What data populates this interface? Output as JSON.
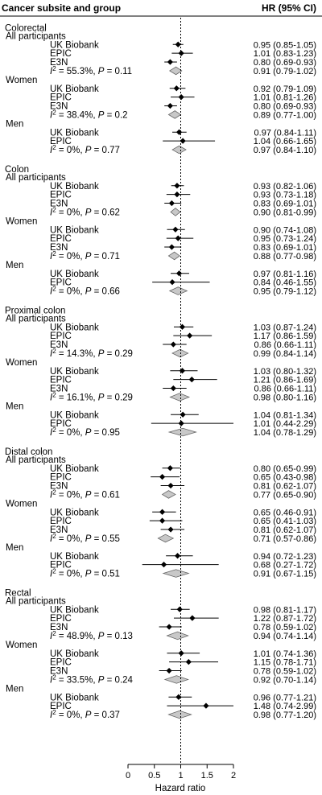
{
  "chart_data": {
    "type": "forest",
    "header_left": "Cancer subsite and group",
    "header_right": "HR (95% CI)",
    "xlabel": "Hazard ratio",
    "xlim": [
      0,
      2
    ],
    "xticks": [
      "0",
      "0.5",
      "1",
      "1.5",
      "2"
    ],
    "reference_line": 1,
    "rows": [
      {
        "kind": "site",
        "label": "Colorectal"
      },
      {
        "kind": "group",
        "label": "All participants"
      },
      {
        "kind": "study",
        "label": "UK Biobank",
        "hr": 0.95,
        "lo": 0.85,
        "hi": 1.05,
        "text": "0.95 (0.85-1.05)"
      },
      {
        "kind": "study",
        "label": "EPIC",
        "hr": 1.01,
        "lo": 0.83,
        "hi": 1.23,
        "text": "1.01 (0.83-1.23)"
      },
      {
        "kind": "study",
        "label": "E3N",
        "hr": 0.8,
        "lo": 0.69,
        "hi": 0.93,
        "text": "0.80 (0.69-0.93)"
      },
      {
        "kind": "pooled",
        "i2": "55.3%",
        "p": "0.11",
        "hr": 0.91,
        "lo": 0.79,
        "hi": 1.02,
        "text": "0.91 (0.79-1.02)"
      },
      {
        "kind": "group",
        "label": "Women"
      },
      {
        "kind": "study",
        "label": "UK Biobank",
        "hr": 0.92,
        "lo": 0.79,
        "hi": 1.09,
        "text": "0.92 (0.79-1.09)"
      },
      {
        "kind": "study",
        "label": "EPIC",
        "hr": 1.01,
        "lo": 0.81,
        "hi": 1.26,
        "text": "1.01 (0.81-1.26)"
      },
      {
        "kind": "study",
        "label": "E3N",
        "hr": 0.8,
        "lo": 0.69,
        "hi": 0.93,
        "text": "0.80 (0.69-0.93)"
      },
      {
        "kind": "pooled",
        "i2": "38.4%",
        "p": "0.2",
        "hr": 0.89,
        "lo": 0.77,
        "hi": 1.0,
        "text": "0.89 (0.77-1.00)"
      },
      {
        "kind": "group",
        "label": "Men"
      },
      {
        "kind": "study",
        "label": "UK Biobank",
        "hr": 0.97,
        "lo": 0.84,
        "hi": 1.11,
        "text": "0.97 (0.84-1.11)"
      },
      {
        "kind": "study",
        "label": "EPIC",
        "hr": 1.04,
        "lo": 0.66,
        "hi": 1.65,
        "text": "1.04 (0.66-1.65)"
      },
      {
        "kind": "pooled",
        "i2": "0%",
        "p": "0.77",
        "hr": 0.97,
        "lo": 0.84,
        "hi": 1.1,
        "text": "0.97 (0.84-1.10)"
      },
      {
        "kind": "gap"
      },
      {
        "kind": "site",
        "label": "Colon"
      },
      {
        "kind": "group",
        "label": "All participants"
      },
      {
        "kind": "study",
        "label": "UK Biobank",
        "hr": 0.93,
        "lo": 0.82,
        "hi": 1.06,
        "text": "0.93 (0.82-1.06)"
      },
      {
        "kind": "study",
        "label": "EPIC",
        "hr": 0.93,
        "lo": 0.73,
        "hi": 1.18,
        "text": "0.93 (0.73-1.18)"
      },
      {
        "kind": "study",
        "label": "E3N",
        "hr": 0.83,
        "lo": 0.69,
        "hi": 1.01,
        "text": "0.83 (0.69-1.01)"
      },
      {
        "kind": "pooled",
        "i2": "0%",
        "p": "0.62",
        "hr": 0.9,
        "lo": 0.81,
        "hi": 0.99,
        "text": "0.90 (0.81-0.99)"
      },
      {
        "kind": "group",
        "label": "Women"
      },
      {
        "kind": "study",
        "label": "UK Biobank",
        "hr": 0.9,
        "lo": 0.74,
        "hi": 1.08,
        "text": "0.90 (0.74-1.08)"
      },
      {
        "kind": "study",
        "label": "EPIC",
        "hr": 0.95,
        "lo": 0.73,
        "hi": 1.24,
        "text": "0.95 (0.73-1.24)"
      },
      {
        "kind": "study",
        "label": "E3N",
        "hr": 0.83,
        "lo": 0.69,
        "hi": 1.01,
        "text": "0.83 (0.69-1.01)"
      },
      {
        "kind": "pooled",
        "i2": "0%",
        "p": "0.71",
        "hr": 0.88,
        "lo": 0.77,
        "hi": 0.98,
        "text": "0.88 (0.77-0.98)"
      },
      {
        "kind": "group",
        "label": "Men"
      },
      {
        "kind": "study",
        "label": "UK Biobank",
        "hr": 0.97,
        "lo": 0.81,
        "hi": 1.16,
        "text": "0.97 (0.81-1.16)"
      },
      {
        "kind": "study",
        "label": "EPIC",
        "hr": 0.84,
        "lo": 0.46,
        "hi": 1.55,
        "text": "0.84 (0.46-1.55)"
      },
      {
        "kind": "pooled",
        "i2": "0%",
        "p": "0.66",
        "hr": 0.95,
        "lo": 0.79,
        "hi": 1.12,
        "text": "0.95 (0.79-1.12)"
      },
      {
        "kind": "gap"
      },
      {
        "kind": "site",
        "label": "Proximal colon"
      },
      {
        "kind": "group",
        "label": "All participants"
      },
      {
        "kind": "study",
        "label": "UK Biobank",
        "hr": 1.03,
        "lo": 0.87,
        "hi": 1.24,
        "text": "1.03 (0.87-1.24)"
      },
      {
        "kind": "study",
        "label": "EPIC",
        "hr": 1.17,
        "lo": 0.86,
        "hi": 1.59,
        "text": "1.17 (0.86-1.59)"
      },
      {
        "kind": "study",
        "label": "E3N",
        "hr": 0.86,
        "lo": 0.66,
        "hi": 1.11,
        "text": "0.86 (0.66-1.11)"
      },
      {
        "kind": "pooled",
        "i2": "14.3%",
        "p": "0.29",
        "hr": 0.99,
        "lo": 0.84,
        "hi": 1.14,
        "text": "0.99 (0.84-1.14)"
      },
      {
        "kind": "group",
        "label": "Women"
      },
      {
        "kind": "study",
        "label": "UK Biobank",
        "hr": 1.03,
        "lo": 0.8,
        "hi": 1.32,
        "text": "1.03 (0.80-1.32)"
      },
      {
        "kind": "study",
        "label": "EPIC",
        "hr": 1.21,
        "lo": 0.86,
        "hi": 1.69,
        "text": "1.21 (0.86-1.69)"
      },
      {
        "kind": "study",
        "label": "E3N",
        "hr": 0.86,
        "lo": 0.66,
        "hi": 1.11,
        "text": "0.86 (0.66-1.11)"
      },
      {
        "kind": "pooled",
        "i2": "16.1%",
        "p": "0.29",
        "hr": 0.98,
        "lo": 0.8,
        "hi": 1.16,
        "text": "0.98 (0.80-1.16)"
      },
      {
        "kind": "group",
        "label": "Men"
      },
      {
        "kind": "study",
        "label": "UK Biobank",
        "hr": 1.04,
        "lo": 0.81,
        "hi": 1.34,
        "text": "1.04 (0.81-1.34)"
      },
      {
        "kind": "study",
        "label": "EPIC",
        "hr": 1.01,
        "lo": 0.44,
        "hi": 2.29,
        "text": "1.01 (0.44-2.29)"
      },
      {
        "kind": "pooled",
        "i2": "0%",
        "p": "0.95",
        "hr": 1.04,
        "lo": 0.78,
        "hi": 1.29,
        "text": "1.04 (0.78-1.29)"
      },
      {
        "kind": "gap"
      },
      {
        "kind": "site",
        "label": "Distal colon"
      },
      {
        "kind": "group",
        "label": "All participants"
      },
      {
        "kind": "study",
        "label": "UK Biobank",
        "hr": 0.8,
        "lo": 0.65,
        "hi": 0.99,
        "text": "0.80 (0.65-0.99)"
      },
      {
        "kind": "study",
        "label": "EPIC",
        "hr": 0.65,
        "lo": 0.43,
        "hi": 0.98,
        "text": "0.65 (0.43-0.98)"
      },
      {
        "kind": "study",
        "label": "E3N",
        "hr": 0.81,
        "lo": 0.62,
        "hi": 1.07,
        "text": "0.81 (0.62-1.07)"
      },
      {
        "kind": "pooled",
        "i2": "0%",
        "p": "0.61",
        "hr": 0.77,
        "lo": 0.65,
        "hi": 0.9,
        "text": "0.77 (0.65-0.90)"
      },
      {
        "kind": "group",
        "label": "Women"
      },
      {
        "kind": "study",
        "label": "UK Biobank",
        "hr": 0.65,
        "lo": 0.46,
        "hi": 0.91,
        "text": "0.65 (0.46-0.91)"
      },
      {
        "kind": "study",
        "label": "EPIC",
        "hr": 0.65,
        "lo": 0.41,
        "hi": 1.03,
        "text": "0.65 (0.41-1.03)"
      },
      {
        "kind": "study",
        "label": "E3N",
        "hr": 0.81,
        "lo": 0.62,
        "hi": 1.07,
        "text": "0.81 (0.62-1.07)"
      },
      {
        "kind": "pooled",
        "i2": "0%",
        "p": "0.55",
        "hr": 0.71,
        "lo": 0.57,
        "hi": 0.86,
        "text": "0.71 (0.57-0.86)"
      },
      {
        "kind": "group",
        "label": "Men"
      },
      {
        "kind": "study",
        "label": "UK Biobank",
        "hr": 0.94,
        "lo": 0.72,
        "hi": 1.23,
        "text": "0.94 (0.72-1.23)"
      },
      {
        "kind": "study",
        "label": "EPIC",
        "hr": 0.68,
        "lo": 0.27,
        "hi": 1.72,
        "text": "0.68 (0.27-1.72)"
      },
      {
        "kind": "pooled",
        "i2": "0%",
        "p": "0.51",
        "hr": 0.91,
        "lo": 0.67,
        "hi": 1.15,
        "text": "0.91 (0.67-1.15)"
      },
      {
        "kind": "gap"
      },
      {
        "kind": "site",
        "label": "Rectal"
      },
      {
        "kind": "group",
        "label": "All participants"
      },
      {
        "kind": "study",
        "label": "UK Biobank",
        "hr": 0.98,
        "lo": 0.81,
        "hi": 1.17,
        "text": "0.98 (0.81-1.17)"
      },
      {
        "kind": "study",
        "label": "EPIC",
        "hr": 1.22,
        "lo": 0.87,
        "hi": 1.72,
        "text": "1.22 (0.87-1.72)"
      },
      {
        "kind": "study",
        "label": "E3N",
        "hr": 0.78,
        "lo": 0.59,
        "hi": 1.02,
        "text": "0.78 (0.59-1.02)"
      },
      {
        "kind": "pooled",
        "i2": "48.9%",
        "p": "0.13",
        "hr": 0.94,
        "lo": 0.74,
        "hi": 1.14,
        "text": "0.94 (0.74-1.14)"
      },
      {
        "kind": "group",
        "label": "Women"
      },
      {
        "kind": "study",
        "label": "UK Biobank",
        "hr": 1.01,
        "lo": 0.74,
        "hi": 1.36,
        "text": "1.01 (0.74-1.36)"
      },
      {
        "kind": "study",
        "label": "EPIC",
        "hr": 1.15,
        "lo": 0.78,
        "hi": 1.71,
        "text": "1.15 (0.78-1.71)"
      },
      {
        "kind": "study",
        "label": "E3N",
        "hr": 0.78,
        "lo": 0.59,
        "hi": 1.02,
        "text": "0.78 (0.59-1.02)"
      },
      {
        "kind": "pooled",
        "i2": "33.5%",
        "p": "0.24",
        "hr": 0.92,
        "lo": 0.7,
        "hi": 1.14,
        "text": "0.92 (0.70-1.14)"
      },
      {
        "kind": "group",
        "label": "Men"
      },
      {
        "kind": "study",
        "label": "UK Biobank",
        "hr": 0.96,
        "lo": 0.77,
        "hi": 1.21,
        "text": "0.96 (0.77-1.21)"
      },
      {
        "kind": "study",
        "label": "EPIC",
        "hr": 1.48,
        "lo": 0.74,
        "hi": 2.99,
        "text": "1.48 (0.74-2.99)"
      },
      {
        "kind": "pooled",
        "i2": "0%",
        "p": "0.37",
        "hr": 0.98,
        "lo": 0.77,
        "hi": 1.2,
        "text": "0.98 (0.77-1.20)"
      }
    ],
    "colors": {
      "diamond_fill": "#c8c8c8",
      "marks": "#000000"
    }
  }
}
